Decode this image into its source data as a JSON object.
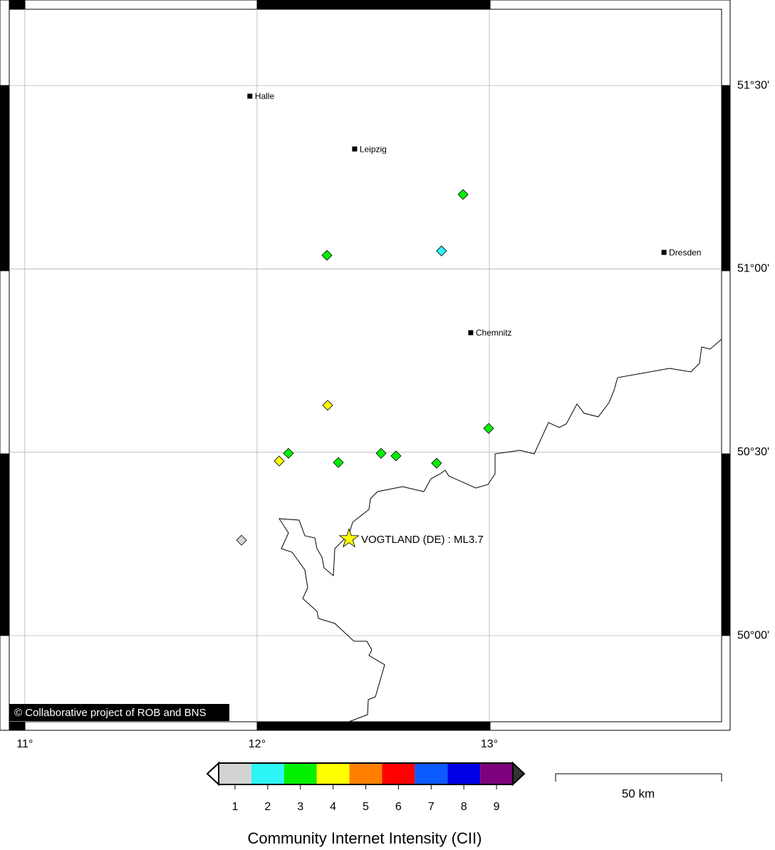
{
  "map": {
    "lon_range": [
      10.933,
      14.0
    ],
    "lat_range": [
      49.765,
      51.708
    ],
    "lon_ticks": [
      {
        "value": 11,
        "label": "11°"
      },
      {
        "value": 12,
        "label": "12°"
      },
      {
        "value": 13,
        "label": "13°"
      }
    ],
    "lat_ticks": [
      {
        "value": 50,
        "label": "50°00'"
      },
      {
        "value": 50.5,
        "label": "50°30'"
      },
      {
        "value": 51,
        "label": "51°00'"
      },
      {
        "value": 51.5,
        "label": "51°30'"
      }
    ],
    "cities": [
      {
        "name": "Halle",
        "lon": 11.969,
        "lat": 51.471
      },
      {
        "name": "Leipzig",
        "lon": 12.42,
        "lat": 51.327
      },
      {
        "name": "Dresden",
        "lon": 13.752,
        "lat": 51.045
      },
      {
        "name": "Chemnitz",
        "lon": 12.92,
        "lat": 50.826
      }
    ],
    "epicenter": {
      "lon": 12.396,
      "lat": 50.264,
      "label": "VOGTLAND (DE) : ML3.7"
    },
    "reports": [
      {
        "lon": 12.887,
        "lat": 51.203,
        "cii": 3
      },
      {
        "lon": 12.301,
        "lat": 51.037,
        "cii": 3
      },
      {
        "lon": 12.794,
        "lat": 51.049,
        "cii": 2
      },
      {
        "lon": 12.304,
        "lat": 50.628,
        "cii": 4
      },
      {
        "lon": 12.997,
        "lat": 50.565,
        "cii": 3
      },
      {
        "lon": 12.135,
        "lat": 50.497,
        "cii": 3
      },
      {
        "lon": 12.095,
        "lat": 50.476,
        "cii": 4
      },
      {
        "lon": 12.35,
        "lat": 50.472,
        "cii": 3
      },
      {
        "lon": 12.534,
        "lat": 50.497,
        "cii": 3
      },
      {
        "lon": 12.598,
        "lat": 50.49,
        "cii": 3
      },
      {
        "lon": 12.773,
        "lat": 50.47,
        "cii": 3
      },
      {
        "lon": 11.933,
        "lat": 50.26,
        "cii": 1
      }
    ],
    "credit": "© Collaborative project of ROB and BNS",
    "scale_bar": "50 km"
  },
  "legend": {
    "title": "Community Internet Intensity (CII)",
    "levels": [
      1,
      2,
      3,
      4,
      5,
      6,
      7,
      8,
      9
    ],
    "colors": [
      "#d3d3d3",
      "#2df5f5",
      "#00f000",
      "#ffff00",
      "#ff8000",
      "#ff0000",
      "#0a5aff",
      "#0000e6",
      "#7d007d"
    ]
  }
}
